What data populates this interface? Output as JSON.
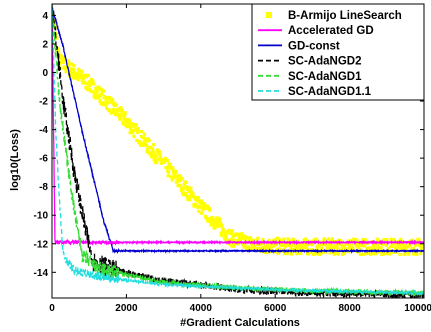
{
  "chart_data": {
    "type": "line",
    "title": "",
    "xlabel": "#Gradient Calculations",
    "ylabel": "log10(Loss)",
    "xlim": [
      0,
      10000
    ],
    "ylim": [
      -15.8,
      4.8
    ],
    "x_ticks": [
      0,
      2000,
      4000,
      6000,
      8000,
      10000
    ],
    "x_tick_labels": [
      "0",
      "2000",
      "4000",
      "6000",
      "8000",
      "10000"
    ],
    "y_ticks": [
      4,
      2,
      0,
      -2,
      -4,
      -6,
      -8,
      -10,
      -12,
      -14
    ],
    "y_tick_labels": [
      "4",
      "2",
      "0",
      "-2",
      "-4",
      "-6",
      "-8",
      "-10",
      "-12",
      "-14"
    ],
    "grid": false,
    "legend_position": "top-right",
    "series": [
      {
        "name": "B-Armijo LineSearch",
        "color": "#ffff00",
        "style": "marker-band",
        "noise": 0.55,
        "points": [
          [
            0,
            4.6
          ],
          [
            200,
            0.8
          ],
          [
            1000,
            -0.8
          ],
          [
            2000,
            -3.4
          ],
          [
            3000,
            -6.4
          ],
          [
            4000,
            -9.4
          ],
          [
            4800,
            -11.6
          ],
          [
            5500,
            -12.1
          ],
          [
            6500,
            -12.2
          ],
          [
            10000,
            -12.2
          ]
        ]
      },
      {
        "name": "Accelerated GD",
        "color": "#ff00ff",
        "style": "solid",
        "noise": 0.12,
        "points": [
          [
            0,
            4.6
          ],
          [
            80,
            -11.9
          ],
          [
            10000,
            -11.9
          ]
        ]
      },
      {
        "name": "GD-const",
        "color": "#0000cd",
        "style": "solid",
        "noise": 0.1,
        "points": [
          [
            0,
            4.6
          ],
          [
            300,
            1.8
          ],
          [
            800,
            -4.0
          ],
          [
            1400,
            -10.5
          ],
          [
            1650,
            -12.5
          ],
          [
            10000,
            -12.5
          ]
        ]
      },
      {
        "name": "SC-AdaNGD2",
        "color": "#000000",
        "style": "dashed",
        "noise": 0.7,
        "points": [
          [
            0,
            4.6
          ],
          [
            300,
            -2.0
          ],
          [
            600,
            -7.0
          ],
          [
            900,
            -11.0
          ],
          [
            1100,
            -13.2
          ],
          [
            1600,
            -13.8
          ],
          [
            3000,
            -14.6
          ],
          [
            5000,
            -15.2
          ],
          [
            7000,
            -15.45
          ],
          [
            10000,
            -15.6
          ]
        ]
      },
      {
        "name": "SC-AdaNGD1",
        "color": "#33dd33",
        "style": "dashed",
        "noise": 0.5,
        "points": [
          [
            0,
            4.6
          ],
          [
            200,
            -2.0
          ],
          [
            450,
            -7.0
          ],
          [
            650,
            -10.5
          ],
          [
            820,
            -12.8
          ],
          [
            1200,
            -13.7
          ],
          [
            3000,
            -14.7
          ],
          [
            5000,
            -15.1
          ],
          [
            7000,
            -15.3
          ],
          [
            10000,
            -15.45
          ]
        ]
      },
      {
        "name": "SC-AdaNGD1.1",
        "color": "#22dddd",
        "style": "dashed",
        "noise": 0.3,
        "points": [
          [
            0,
            4.6
          ],
          [
            100,
            -4.0
          ],
          [
            200,
            -9.0
          ],
          [
            300,
            -12.8
          ],
          [
            600,
            -13.9
          ],
          [
            1500,
            -14.4
          ],
          [
            3000,
            -14.85
          ],
          [
            5000,
            -15.1
          ],
          [
            7000,
            -15.3
          ],
          [
            10000,
            -15.45
          ]
        ]
      }
    ]
  }
}
